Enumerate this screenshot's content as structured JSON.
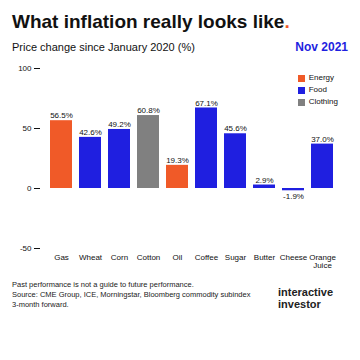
{
  "chart_data": {
    "type": "bar",
    "title": "What inflation really looks like.",
    "subtitle": "Price change since January 2020 (%)",
    "date_label": "Nov 2021",
    "note": "Past performance is not a guide to future performance.",
    "source": "Source: CME Group, ICE, Morningstar, Bloomberg commodity subindex 3-month forward.",
    "brand": "interactive investor",
    "categories": [
      "Gas",
      "Wheat",
      "Corn",
      "Cotton",
      "Oil",
      "Coffee",
      "Sugar",
      "Butter",
      "Cheese",
      "Orange Juice"
    ],
    "series": [
      {
        "name": "Energy",
        "color": "#f05a28",
        "values": [
          56.5,
          null,
          null,
          null,
          19.3,
          null,
          null,
          null,
          null,
          null
        ],
        "value_labels": [
          "56.5%",
          null,
          null,
          null,
          "19.3%",
          null,
          null,
          null,
          null,
          null
        ]
      },
      {
        "name": "Food",
        "color": "#1f1fe0",
        "values": [
          null,
          42.6,
          49.2,
          null,
          null,
          67.1,
          45.6,
          2.9,
          -1.9,
          37.0
        ],
        "value_labels": [
          null,
          "42.6%",
          "49.2%",
          null,
          null,
          "67.1%",
          "45.6%",
          "2.9%",
          "-1.9%",
          "37.0%"
        ]
      },
      {
        "name": "Clothing",
        "color": "#808080",
        "values": [
          null,
          null,
          null,
          60.8,
          null,
          null,
          null,
          null,
          null,
          null
        ],
        "value_labels": [
          null,
          null,
          null,
          "60.8%",
          null,
          null,
          null,
          null,
          null,
          null
        ]
      }
    ],
    "ylim": [
      -50,
      100
    ],
    "yticks": [
      -50,
      0,
      50,
      100
    ],
    "grid": false,
    "legend": "top-right",
    "data_labels": true
  }
}
